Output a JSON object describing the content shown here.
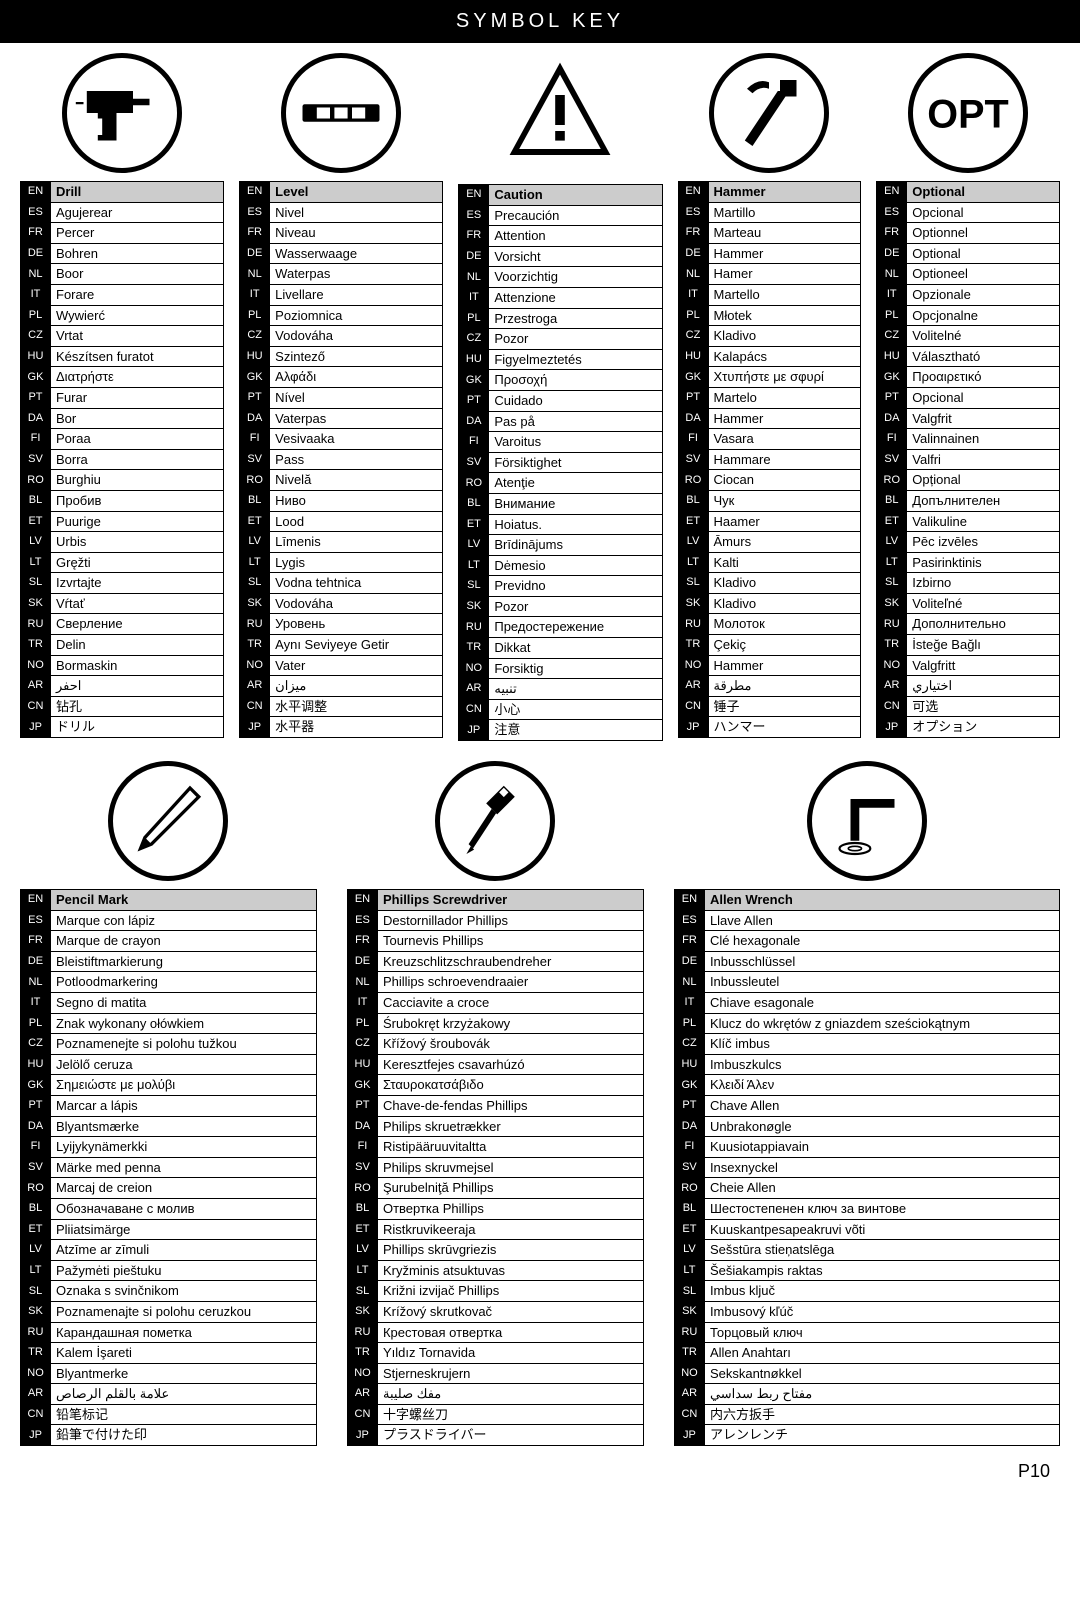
{
  "title": "SYMBOL KEY",
  "pageNum": "P10",
  "langs": [
    "EN",
    "ES",
    "FR",
    "DE",
    "NL",
    "IT",
    "PL",
    "CZ",
    "HU",
    "GK",
    "PT",
    "DA",
    "FI",
    "SV",
    "RO",
    "BL",
    "ET",
    "LV",
    "LT",
    "SL",
    "SK",
    "RU",
    "TR",
    "NO",
    "AR",
    "CN",
    "JP"
  ],
  "cols1": [
    {
      "key": "drill",
      "words": [
        "Drill",
        "Agujerear",
        "Percer",
        "Bohren",
        "Boor",
        "Forare",
        "Wywierć",
        "Vrtat",
        "Készítsen furatot",
        "Διατρήστε",
        "Furar",
        "Bor",
        "Poraa",
        "Borra",
        "Burghiu",
        "Пробив",
        "Puurige",
        "Urbis",
        "Gręžti",
        "Izvrtajte",
        "Vŕtať",
        "Сверление",
        "Delin",
        "Bormaskin",
        "احفر",
        "钻孔",
        "ドリル"
      ]
    },
    {
      "key": "level",
      "words": [
        "Level",
        "Nivel",
        "Niveau",
        "Wasserwaage",
        "Waterpas",
        "Livellare",
        "Poziomnica",
        "Vodováha",
        "Szintező",
        "Αλφάδι",
        "Nível",
        "Vaterpas",
        "Vesivaaka",
        "Pass",
        "Nivelă",
        "Ниво",
        "Lood",
        "Līmenis",
        "Lygis",
        "Vodna tehtnica",
        "Vodováha",
        "Уровень",
        "Aynı Seviyeye Getir",
        "Vater",
        "ميزان",
        "水平调整",
        "水平器"
      ]
    },
    {
      "key": "caution",
      "words": [
        "Caution",
        "Precaución",
        "Attention",
        "Vorsicht",
        "Voorzichtig",
        "Attenzione",
        "Przestroga",
        "Pozor",
        "Figyelmeztetés",
        "Προσοχή",
        "Cuidado",
        "Pas på",
        "Varoitus",
        "Försiktighet",
        "Atenţie",
        "Внимание",
        "Hoiatus.",
        "Brīdinājums",
        "Dėmesio",
        "Previdno",
        "Pozor",
        "Предостережение",
        "Dikkat",
        "Forsiktig",
        "تنبيه",
        "小心",
        "注意"
      ]
    },
    {
      "key": "hammer",
      "words": [
        "Hammer",
        "Martillo",
        "Marteau",
        "Hammer",
        "Hamer",
        "Martello",
        "Młotek",
        "Kladivo",
        "Kalapács",
        "Χτυπήστε με σφυρί",
        "Martelo",
        "Hammer",
        "Vasara",
        "Hammare",
        "Ciocan",
        "Чук",
        "Haamer",
        "Āmurs",
        "Kalti",
        "Kladivo",
        "Kladivo",
        "Молоток",
        "Çekiç",
        "Hammer",
        "مطرقة",
        "锤子",
        "ハンマー"
      ]
    },
    {
      "key": "optional",
      "words": [
        "Optional",
        "Opcional",
        "Optionnel",
        "Optional",
        "Optioneel",
        "Opzionale",
        "Opcjonalne",
        "Volitelné",
        "Választható",
        "Προαιρετικό",
        "Opcional",
        "Valgfrit",
        "Valinnainen",
        "Valfri",
        "Opțional",
        "Допълнителен",
        "Valikuline",
        "Pēc izvēles",
        "Pasirinktinis",
        "Izbirno",
        "Voliteľné",
        "Дополнительно",
        "İsteğe Bağlı",
        "Valgfritt",
        "اختياري",
        "可选",
        "オプション"
      ]
    }
  ],
  "cols2": [
    {
      "key": "pencil",
      "words": [
        "Pencil Mark",
        "Marque con lápiz",
        "Marque de crayon",
        "Bleistiftmarkierung",
        "Potloodmarkering",
        "Segno di matita",
        "Znak wykonany ołówkiem",
        "Poznamenejte si polohu tužkou",
        "Jelölő ceruza",
        "Σημειώστε με μολύβι",
        "Marcar a lápis",
        "Blyantsmærke",
        "Lyijykynämerkki",
        "Märke med penna",
        "Marcaj de creion",
        "Обозначаване с молив",
        "Pliiatsimärge",
        "Atzīme ar zīmuli",
        "Pažymėti pieštuku",
        "Oznaka s svinčnikom",
        "Poznamenajte si polohu ceruzkou",
        "Карандашная пометка",
        "Kalem İşareti",
        "Blyantmerke",
        "علامة بالقلم الرصاص",
        "铅笔标记",
        "鉛筆で付けた印"
      ]
    },
    {
      "key": "phillips",
      "words": [
        "Phillips Screwdriver",
        "Destornillador Phillips",
        "Tournevis Phillips",
        "Kreuzschlitzschraubendreher",
        "Phillips schroevendraaier",
        "Cacciavite a croce",
        "Śrubokręt krzyżakowy",
        "Křížový šroubovák",
        "Keresztfejes csavarhúzó",
        "Σταυροκατσάβιδο",
        "Chave-de-fendas Phillips",
        "Philips skruetrækker",
        "Ristipääruuvitaltta",
        "Philips skruvmejsel",
        "Şurubelniţă Phillips",
        "Отвертка Phillips",
        "Ristkruvikeeraja",
        "Phillips skrūvgriezis",
        "Kryžminis atsuktuvas",
        "Križni izvijač Phillips",
        "Krížový skrutkovač",
        "Крестовая отвертка",
        "Yıldız Tornavida",
        "Stjerneskrujern",
        "مفك صليبة",
        "十字螺丝刀",
        "プラスドライバー"
      ]
    },
    {
      "key": "allen",
      "words": [
        "Allen Wrench",
        "Llave Allen",
        "Clé hexagonale",
        "Inbusschlüssel",
        "Inbussleutel",
        "Chiave esagonale",
        "Klucz do wkrętów z gniazdem sześciokątnym",
        "Klíč imbus",
        "Imbuszkulcs",
        "Κλειδί Άλεν",
        "Chave Allen",
        "Unbrakonøgle",
        "Kuusiotappiavain",
        "Insexnyckel",
        "Cheie Allen",
        "Шестостепенен ключ за винтове",
        "Kuuskantpesapeakruvi võti",
        "Sešstūra stieņatslēga",
        "Šešiakampis raktas",
        "Imbus ključ",
        "Imbusový kľúč",
        "Торцовый ключ",
        "Allen Anahtarı",
        "Sekskantnøkkel",
        "مفتاح ربط سداسي",
        "内六方扳手",
        "アレンレンチ"
      ]
    }
  ]
}
